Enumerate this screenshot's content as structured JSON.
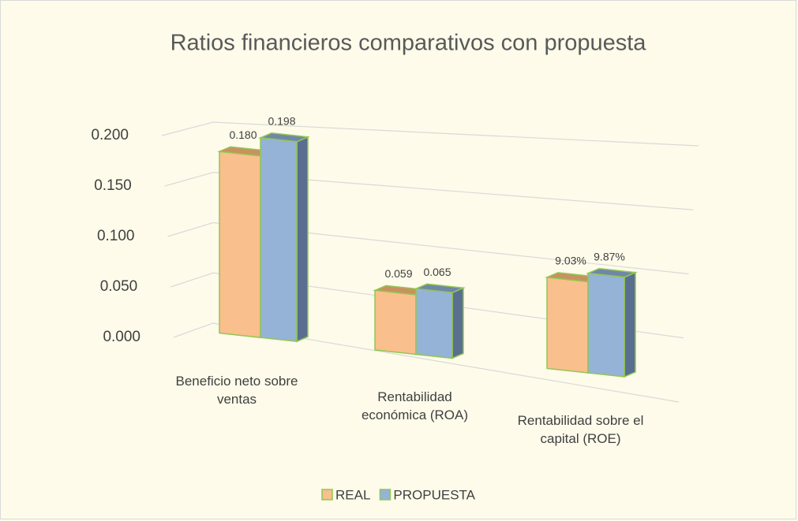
{
  "chart_data": {
    "type": "bar3d",
    "title": "Ratios financieros comparativos con propuesta",
    "categories": [
      "Beneficio neto sobre ventas",
      "Rentabilidad económica (ROA)",
      "Rentabilidad sobre el capital (ROE)"
    ],
    "series": [
      {
        "name": "REAL",
        "color": "#f9bf8c",
        "values": [
          0.18,
          0.059,
          0.0903
        ],
        "value_labels": [
          "0.180",
          "0.059",
          "9.03%"
        ]
      },
      {
        "name": "PROPUESTA",
        "color": "#95b3d7",
        "values": [
          0.198,
          0.065,
          0.0987
        ],
        "value_labels": [
          "0.198",
          "0.065",
          "9.87%"
        ]
      }
    ],
    "ylim": [
      0,
      0.2
    ],
    "yticks": [
      {
        "value": 0,
        "label": "0.000"
      },
      {
        "value": 0.05,
        "label": "0.050"
      },
      {
        "value": 0.1,
        "label": "0.100"
      },
      {
        "value": 0.15,
        "label": "0.150"
      },
      {
        "value": 0.2,
        "label": "0.200"
      }
    ],
    "grid": true,
    "legend": "bottom"
  }
}
